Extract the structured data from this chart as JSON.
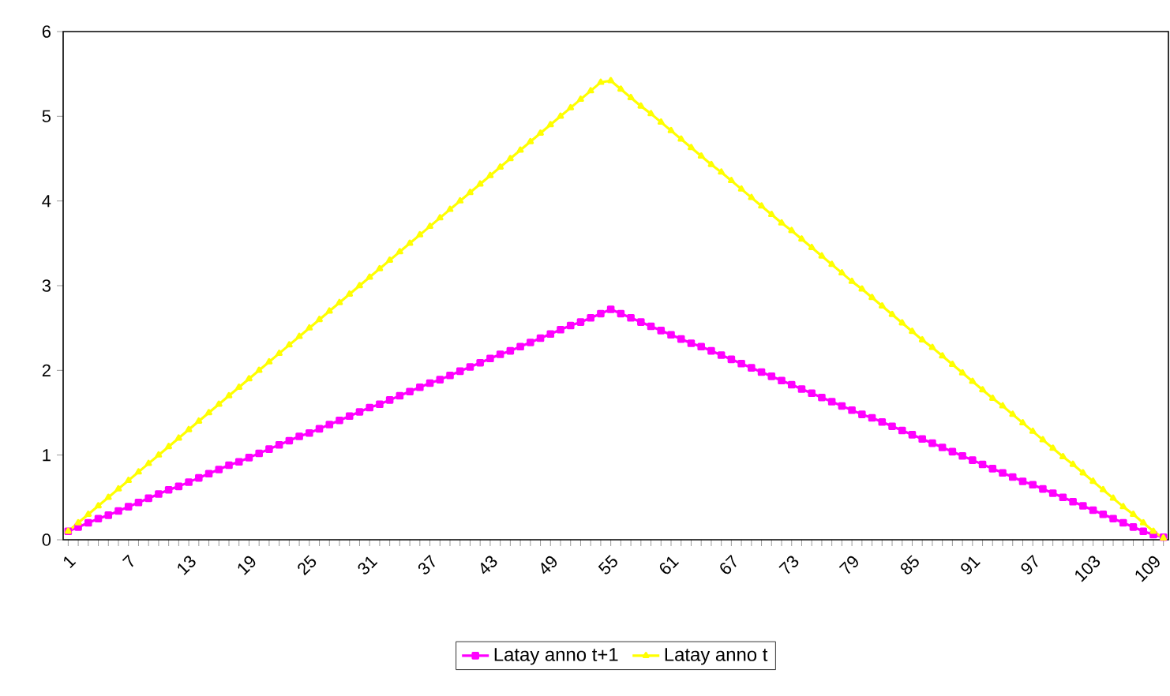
{
  "chart_data": {
    "type": "line",
    "categories": [
      "1",
      null,
      null,
      null,
      null,
      null,
      "7",
      null,
      null,
      null,
      null,
      null,
      "13",
      null,
      null,
      null,
      null,
      null,
      "19",
      null,
      null,
      null,
      null,
      null,
      "25",
      null,
      null,
      null,
      null,
      null,
      "31",
      null,
      null,
      null,
      null,
      null,
      "37",
      null,
      null,
      null,
      null,
      null,
      "43",
      null,
      null,
      null,
      null,
      null,
      "49",
      null,
      null,
      null,
      null,
      null,
      "55",
      null,
      null,
      null,
      null,
      null,
      "61",
      null,
      null,
      null,
      null,
      null,
      "67",
      null,
      null,
      null,
      null,
      null,
      "73",
      null,
      null,
      null,
      null,
      null,
      "79",
      null,
      null,
      null,
      null,
      null,
      "85",
      null,
      null,
      null,
      null,
      null,
      "91",
      null,
      null,
      null,
      null,
      null,
      "97",
      null,
      null,
      null,
      null,
      null,
      "103",
      null,
      null,
      null,
      null,
      null,
      "109",
      null
    ],
    "series": [
      {
        "name": "Latay anno t+1",
        "color": "#ff00ff",
        "marker": "square",
        "values": [
          0.1,
          0.15,
          0.2,
          0.25,
          0.29,
          0.34,
          0.39,
          0.44,
          0.49,
          0.54,
          0.59,
          0.63,
          0.68,
          0.73,
          0.78,
          0.83,
          0.88,
          0.92,
          0.97,
          1.02,
          1.07,
          1.12,
          1.17,
          1.22,
          1.26,
          1.31,
          1.36,
          1.41,
          1.46,
          1.51,
          1.56,
          1.6,
          1.65,
          1.7,
          1.75,
          1.8,
          1.85,
          1.89,
          1.94,
          1.99,
          2.04,
          2.09,
          2.14,
          2.19,
          2.23,
          2.28,
          2.33,
          2.38,
          2.43,
          2.48,
          2.53,
          2.57,
          2.62,
          2.67,
          2.72,
          2.67,
          2.62,
          2.57,
          2.52,
          2.47,
          2.42,
          2.37,
          2.32,
          2.28,
          2.23,
          2.18,
          2.13,
          2.08,
          2.03,
          1.98,
          1.93,
          1.88,
          1.83,
          1.78,
          1.73,
          1.68,
          1.63,
          1.58,
          1.53,
          1.48,
          1.44,
          1.39,
          1.34,
          1.29,
          1.24,
          1.19,
          1.14,
          1.09,
          1.04,
          0.99,
          0.94,
          0.89,
          0.84,
          0.79,
          0.74,
          0.69,
          0.65,
          0.6,
          0.55,
          0.5,
          0.45,
          0.4,
          0.35,
          0.3,
          0.25,
          0.2,
          0.15,
          0.1,
          0.06,
          0.03
        ]
      },
      {
        "name": "Latay anno t",
        "color": "#ffff00",
        "marker": "triangle",
        "values": [
          0.1,
          0.2,
          0.3,
          0.4,
          0.5,
          0.6,
          0.7,
          0.8,
          0.9,
          1.0,
          1.1,
          1.2,
          1.3,
          1.4,
          1.5,
          1.6,
          1.7,
          1.8,
          1.9,
          2.0,
          2.1,
          2.2,
          2.3,
          2.4,
          2.5,
          2.6,
          2.7,
          2.8,
          2.9,
          3.0,
          3.1,
          3.2,
          3.3,
          3.4,
          3.5,
          3.6,
          3.7,
          3.8,
          3.9,
          4.0,
          4.1,
          4.2,
          4.3,
          4.4,
          4.5,
          4.6,
          4.7,
          4.8,
          4.9,
          5.0,
          5.1,
          5.2,
          5.3,
          5.4,
          5.42,
          5.32,
          5.22,
          5.12,
          5.03,
          4.93,
          4.83,
          4.73,
          4.63,
          4.53,
          4.43,
          4.34,
          4.24,
          4.14,
          4.04,
          3.94,
          3.84,
          3.74,
          3.65,
          3.55,
          3.45,
          3.35,
          3.25,
          3.15,
          3.05,
          2.96,
          2.86,
          2.76,
          2.66,
          2.56,
          2.46,
          2.36,
          2.27,
          2.17,
          2.07,
          1.97,
          1.87,
          1.77,
          1.67,
          1.58,
          1.48,
          1.38,
          1.28,
          1.18,
          1.08,
          0.98,
          0.89,
          0.79,
          0.69,
          0.59,
          0.49,
          0.39,
          0.3,
          0.2,
          0.1,
          0.02
        ]
      }
    ],
    "ylim": [
      0,
      6
    ],
    "yticks": [
      0,
      1,
      2,
      3,
      4,
      5,
      6
    ],
    "grid": false,
    "legend": "bottom",
    "line_style": "solid"
  }
}
